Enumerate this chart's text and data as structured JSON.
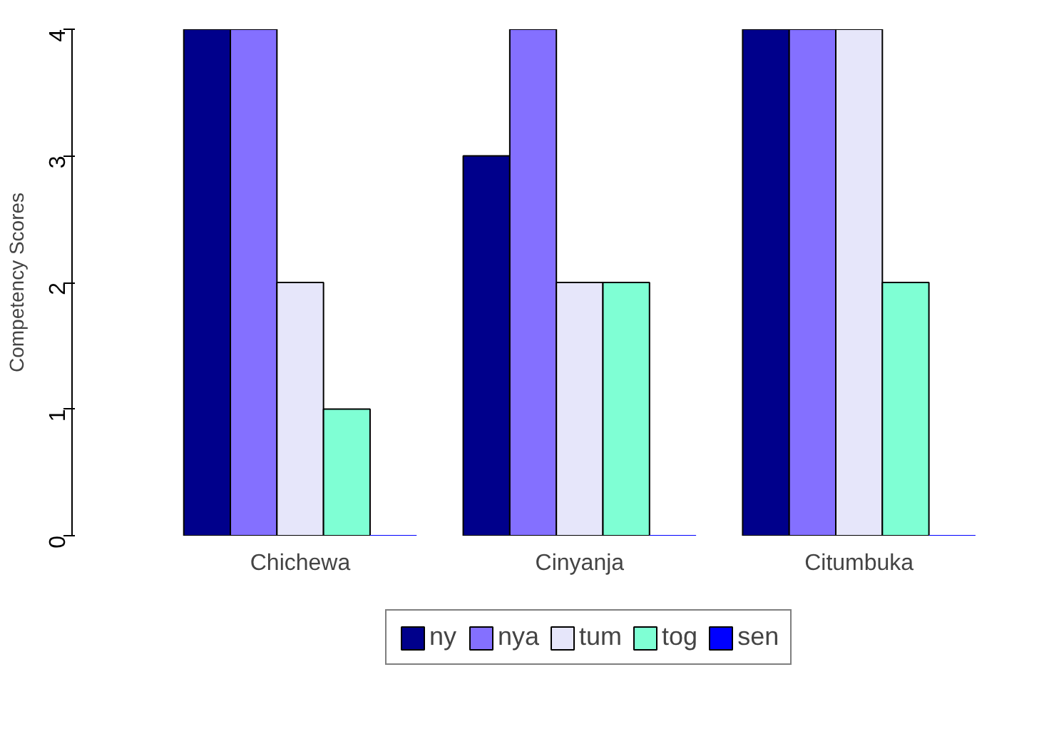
{
  "chart_data": {
    "type": "bar",
    "ylabel": "Competency Scores",
    "categories": [
      "Chichewa",
      "Cinyanja",
      "Citumbuka"
    ],
    "series": [
      {
        "name": "ny",
        "color": "#00008b",
        "values": [
          4,
          3,
          4
        ]
      },
      {
        "name": "nya",
        "color": "#8470ff",
        "values": [
          4,
          4,
          4
        ]
      },
      {
        "name": "tum",
        "color": "#e6e6fa",
        "values": [
          2,
          2,
          4
        ]
      },
      {
        "name": "tog",
        "color": "#7fffd4",
        "values": [
          1,
          2,
          2
        ]
      },
      {
        "name": "sen",
        "color": "#0000ff",
        "values": [
          0,
          0,
          0
        ]
      }
    ],
    "ylim": [
      0,
      4
    ],
    "yticks": [
      0,
      1,
      2,
      3,
      4
    ],
    "grid": false,
    "legend": "bottom"
  }
}
